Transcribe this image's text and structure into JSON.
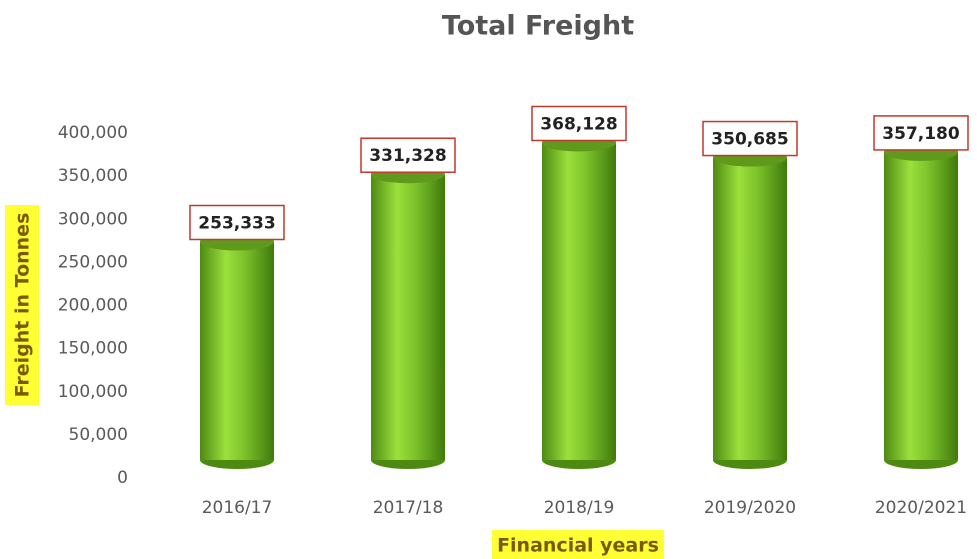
{
  "chart_data": {
    "type": "bar",
    "title": "Total Freight",
    "x_label": "Financial years",
    "y_label": "Freight in Tonnes",
    "categories": [
      "2016/17",
      "2017/18",
      "2018/19",
      "2019/2020",
      "2020/2021"
    ],
    "values": [
      253333,
      331328,
      368128,
      350685,
      357180
    ],
    "value_labels": [
      "253,333",
      "331,328",
      "368,128",
      "350,685",
      "357,180"
    ],
    "color": "#7cc22a",
    "ylim": [
      0,
      400000
    ],
    "yticks": [
      0,
      {
        "value": 50000,
        "label": "50,000"
      },
      {
        "value": 100000,
        "label": "100,000"
      },
      {
        "value": 150000,
        "label": "150,000"
      },
      {
        "value": 200000,
        "label": "200,000"
      },
      {
        "value": 250000,
        "label": "250,000"
      },
      {
        "value": 300000,
        "label": "300,000"
      },
      {
        "value": 350000,
        "label": "350,000"
      },
      {
        "value": 400000,
        "label": "400,000"
      }
    ],
    "grid": false
  }
}
